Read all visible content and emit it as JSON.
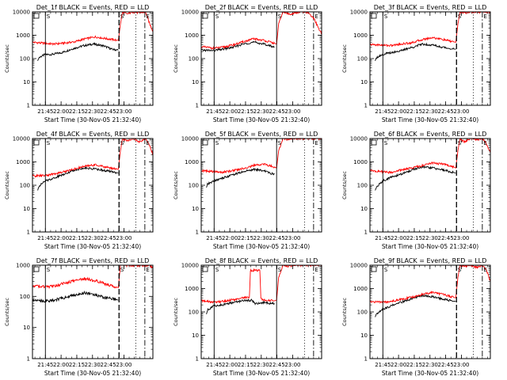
{
  "chart_data": [
    {
      "type": "line",
      "title": "Det_1f BLACK = Events, RED = LLD",
      "xlabel": "Start Time (30-Nov-05 21:32:40)",
      "ylabel": "Counts/sec",
      "yscale": "log",
      "ylim": [
        1,
        10000
      ],
      "yticks": [
        "1",
        "10",
        "100",
        "1000",
        "10000"
      ],
      "xticks": [
        "21:45",
        "22:00",
        "22:15",
        "22:30",
        "22:45",
        "23:00"
      ],
      "xlim_minutes": [
        0,
        115
      ],
      "markers": [
        {
          "label": "S",
          "x_minutes": 12.33,
          "style": "solid"
        },
        {
          "label": "S",
          "x_minutes": 82.67,
          "style": "dashed"
        },
        {
          "label": "",
          "x_minutes": 98.67,
          "style": "dotted"
        },
        {
          "label": "E",
          "x_minutes": 107.33,
          "style": "dashdot"
        }
      ],
      "series": [
        {
          "color": "#000000",
          "x_minutes": [
            5,
            6,
            12,
            18,
            28,
            38,
            48,
            58,
            68,
            76,
            82
          ],
          "values": [
            80,
            110,
            150,
            150,
            180,
            260,
            350,
            420,
            350,
            250,
            230
          ]
        },
        {
          "color": "#ff0000",
          "x_minutes": [
            0,
            12,
            20,
            30,
            40,
            50,
            60,
            70,
            80,
            82,
            84,
            86,
            90,
            96,
            102,
            108,
            112,
            115
          ],
          "values": [
            500,
            450,
            420,
            460,
            520,
            700,
            850,
            720,
            620,
            600,
            3000,
            10000,
            8000,
            10000,
            9000,
            10000,
            3000,
            1500
          ]
        }
      ]
    },
    {
      "type": "line",
      "title": "Det_2f BLACK = Events, RED = LLD",
      "xlabel": "Start Time (30-Nov-05 21:32:40)",
      "ylabel": "Counts/sec",
      "yscale": "log",
      "ylim": [
        1,
        10000
      ],
      "yticks": [
        "1",
        "10",
        "100",
        "1000",
        "10000"
      ],
      "xticks": [
        "21:45",
        "22:00",
        "22:15",
        "22:30",
        "22:45",
        "23:00"
      ],
      "xlim_minutes": [
        0,
        115
      ],
      "markers": [
        {
          "label": "S",
          "x_minutes": 12.33,
          "style": "solid"
        },
        {
          "label": "S",
          "x_minutes": 72,
          "style": "solid"
        },
        {
          "label": "",
          "x_minutes": 98.67,
          "style": "dotted"
        },
        {
          "label": "E",
          "x_minutes": 107.33,
          "style": "dashdot"
        }
      ],
      "series": [
        {
          "color": "#000000",
          "x_minutes": [
            0,
            12,
            20,
            30,
            40,
            50,
            60,
            66,
            70
          ],
          "values": [
            230,
            220,
            250,
            300,
            420,
            500,
            420,
            350,
            300
          ]
        },
        {
          "color": "#ff0000",
          "x_minutes": [
            0,
            12,
            20,
            30,
            40,
            50,
            60,
            70,
            72,
            74,
            78,
            84,
            90,
            96,
            102,
            108,
            112,
            115
          ],
          "values": [
            320,
            280,
            300,
            380,
            520,
            700,
            600,
            450,
            420,
            3000,
            10000,
            8000,
            9000,
            10000,
            9000,
            5000,
            2000,
            1200
          ]
        }
      ]
    },
    {
      "type": "line",
      "title": "Det_3f BLACK = Events, RED = LLD",
      "xlabel": "Start Time (30-Nov-05 21:32:40)",
      "ylabel": "Counts/sec",
      "yscale": "log",
      "ylim": [
        1,
        10000
      ],
      "yticks": [
        "1",
        "10",
        "100",
        "1000",
        "10000"
      ],
      "xticks": [
        "21:45",
        "22:00",
        "22:15",
        "22:30",
        "22:45",
        "23:00"
      ],
      "xlim_minutes": [
        0,
        115
      ],
      "markers": [
        {
          "label": "S",
          "x_minutes": 12.33,
          "style": "solid"
        },
        {
          "label": "S",
          "x_minutes": 82.67,
          "style": "dashed"
        },
        {
          "label": "",
          "x_minutes": 98.67,
          "style": "dotted"
        },
        {
          "label": "E",
          "x_minutes": 107.33,
          "style": "dashdot"
        }
      ],
      "series": [
        {
          "color": "#000000",
          "x_minutes": [
            5,
            6,
            12,
            20,
            30,
            40,
            50,
            60,
            70,
            80,
            82
          ],
          "values": [
            80,
            110,
            150,
            180,
            220,
            300,
            420,
            380,
            300,
            260,
            250
          ]
        },
        {
          "color": "#ff0000",
          "x_minutes": [
            0,
            12,
            20,
            30,
            40,
            50,
            60,
            70,
            80,
            82,
            84,
            86,
            90,
            96,
            102,
            108,
            112,
            115
          ],
          "values": [
            400,
            380,
            360,
            420,
            480,
            650,
            800,
            650,
            520,
            500,
            3000,
            10000,
            9000,
            10000,
            10000,
            10000,
            10000,
            10000
          ]
        }
      ]
    },
    {
      "type": "line",
      "title": "Det_4f BLACK = Events, RED = LLD",
      "xlabel": "Start Time (30-Nov-05 21:32:40)",
      "ylabel": "Counts/sec",
      "yscale": "log",
      "ylim": [
        1,
        10000
      ],
      "yticks": [
        "1",
        "10",
        "100",
        "1000",
        "10000"
      ],
      "xticks": [
        "21:45",
        "22:00",
        "22:15",
        "22:30",
        "22:45",
        "23:00"
      ],
      "xlim_minutes": [
        0,
        115
      ],
      "markers": [
        {
          "label": "S",
          "x_minutes": 12.33,
          "style": "solid"
        },
        {
          "label": "S",
          "x_minutes": 82.67,
          "style": "dashed"
        },
        {
          "label": "",
          "x_minutes": 98.67,
          "style": "dotted"
        },
        {
          "label": "E",
          "x_minutes": 107.33,
          "style": "dashdot"
        }
      ],
      "series": [
        {
          "color": "#000000",
          "x_minutes": [
            5,
            6,
            12,
            20,
            30,
            40,
            50,
            60,
            70,
            80,
            82
          ],
          "values": [
            60,
            90,
            150,
            200,
            300,
            450,
            550,
            500,
            420,
            350,
            330
          ]
        },
        {
          "color": "#ff0000",
          "x_minutes": [
            0,
            12,
            20,
            30,
            40,
            50,
            60,
            70,
            80,
            82,
            84,
            86,
            90,
            96,
            102,
            108,
            112,
            115
          ],
          "values": [
            250,
            260,
            300,
            380,
            500,
            650,
            750,
            600,
            500,
            480,
            3000,
            10000,
            8000,
            10000,
            7000,
            10000,
            5000,
            2000
          ]
        }
      ]
    },
    {
      "type": "line",
      "title": "Det_5f BLACK = Events, RED = LLD",
      "xlabel": "Start Time (30-Nov-05 21:32:40)",
      "ylabel": "Counts/sec",
      "yscale": "log",
      "ylim": [
        1,
        10000
      ],
      "yticks": [
        "1",
        "10",
        "100",
        "1000",
        "10000"
      ],
      "xticks": [
        "21:45",
        "22:00",
        "22:15",
        "22:30",
        "22:45",
        "23:00"
      ],
      "xlim_minutes": [
        0,
        115
      ],
      "markers": [
        {
          "label": "S",
          "x_minutes": 12.33,
          "style": "solid"
        },
        {
          "label": "S",
          "x_minutes": 72,
          "style": "solid"
        },
        {
          "label": "",
          "x_minutes": 98.67,
          "style": "dotted"
        },
        {
          "label": "E",
          "x_minutes": 107.33,
          "style": "dashdot"
        }
      ],
      "series": [
        {
          "color": "#000000",
          "x_minutes": [
            5,
            6,
            12,
            20,
            30,
            40,
            50,
            60,
            66,
            70
          ],
          "values": [
            80,
            110,
            150,
            200,
            280,
            380,
            480,
            420,
            320,
            300
          ]
        },
        {
          "color": "#ff0000",
          "x_minutes": [
            0,
            12,
            20,
            30,
            40,
            50,
            60,
            70,
            72,
            74,
            78,
            84,
            90,
            96,
            102,
            108,
            112,
            115
          ],
          "values": [
            420,
            380,
            360,
            420,
            520,
            700,
            800,
            600,
            550,
            3000,
            10000,
            9000,
            10000,
            10000,
            10000,
            10000,
            10000,
            10000
          ]
        }
      ]
    },
    {
      "type": "line",
      "title": "Det_6f BLACK = Events, RED = LLD",
      "xlabel": "Start Time (30-Nov-05 21:32:40)",
      "ylabel": "Counts/sec",
      "yscale": "log",
      "ylim": [
        1,
        10000
      ],
      "yticks": [
        "1",
        "10",
        "100",
        "1000",
        "10000"
      ],
      "xticks": [
        "21:45",
        "22:00",
        "22:15",
        "22:30",
        "22:45",
        "23:00"
      ],
      "xlim_minutes": [
        0,
        115
      ],
      "markers": [
        {
          "label": "S",
          "x_minutes": 12.33,
          "style": "solid"
        },
        {
          "label": "S",
          "x_minutes": 82.67,
          "style": "dashed"
        },
        {
          "label": "",
          "x_minutes": 98.67,
          "style": "dotted"
        },
        {
          "label": "E",
          "x_minutes": 107.33,
          "style": "dashdot"
        }
      ],
      "series": [
        {
          "color": "#000000",
          "x_minutes": [
            5,
            6,
            12,
            20,
            30,
            40,
            50,
            60,
            70,
            80,
            82
          ],
          "values": [
            60,
            80,
            150,
            220,
            300,
            450,
            600,
            550,
            450,
            350,
            330
          ]
        },
        {
          "color": "#ff0000",
          "x_minutes": [
            0,
            12,
            20,
            30,
            40,
            50,
            60,
            70,
            80,
            82,
            84,
            86,
            90,
            96,
            102,
            108,
            112,
            115
          ],
          "values": [
            420,
            380,
            350,
            450,
            560,
            700,
            900,
            800,
            600,
            550,
            3000,
            10000,
            7000,
            10000,
            9000,
            10000,
            5000,
            2500
          ]
        }
      ]
    },
    {
      "type": "line",
      "title": "Det_7f BLACK = Events, RED = LLD",
      "xlabel": "Start Time (30-Nov-05 21:32:40)",
      "ylabel": "Counts/sec",
      "yscale": "log",
      "ylim": [
        1,
        1000
      ],
      "yticks": [
        "1",
        "10",
        "100",
        "1000"
      ],
      "xticks": [
        "21:45",
        "22:00",
        "22:15",
        "22:30",
        "22:45",
        "23:00"
      ],
      "xlim_minutes": [
        0,
        115
      ],
      "markers": [
        {
          "label": "S",
          "x_minutes": 12.33,
          "style": "solid"
        },
        {
          "label": "S",
          "x_minutes": 82.67,
          "style": "dashed"
        },
        {
          "label": "",
          "x_minutes": 98.67,
          "style": "dotted"
        },
        {
          "label": "E",
          "x_minutes": 107.33,
          "style": "dashdot"
        }
      ],
      "series": [
        {
          "color": "#000000",
          "x_minutes": [
            0,
            12,
            20,
            30,
            40,
            50,
            60,
            70,
            80,
            82
          ],
          "values": [
            80,
            70,
            75,
            90,
            110,
            130,
            110,
            90,
            80,
            75
          ]
        },
        {
          "color": "#ff0000",
          "x_minutes": [
            0,
            12,
            20,
            30,
            40,
            50,
            60,
            70,
            80,
            82,
            84,
            86,
            90,
            96,
            102,
            108,
            112,
            115
          ],
          "values": [
            220,
            200,
            210,
            260,
            320,
            370,
            320,
            250,
            200,
            190,
            1000,
            1000,
            1000,
            1000,
            1000,
            1000,
            1000,
            800
          ]
        }
      ]
    },
    {
      "type": "line",
      "title": "Det_8f BLACK = Events, RED = LLD",
      "xlabel": "Start Time (30-Nov-05 21:32:40)",
      "ylabel": "Counts/sec",
      "yscale": "log",
      "ylim": [
        1,
        10000
      ],
      "yticks": [
        "1",
        "10",
        "100",
        "1000",
        "10000"
      ],
      "xticks": [
        "21:45",
        "22:00",
        "22:15",
        "22:30",
        "22:45",
        "23:00"
      ],
      "xlim_minutes": [
        0,
        115
      ],
      "markers": [
        {
          "label": "S",
          "x_minutes": 12.33,
          "style": "solid"
        },
        {
          "label": "S",
          "x_minutes": 72,
          "style": "solid"
        },
        {
          "label": "",
          "x_minutes": 98.67,
          "style": "dotted"
        },
        {
          "label": "E",
          "x_minutes": 107.33,
          "style": "dashdot"
        }
      ],
      "series": [
        {
          "color": "#000000",
          "x_minutes": [
            5,
            6,
            12,
            20,
            30,
            40,
            48,
            52,
            60,
            66,
            70
          ],
          "values": [
            80,
            120,
            180,
            200,
            250,
            300,
            320,
            220,
            250,
            230,
            230
          ]
        },
        {
          "color": "#ff0000",
          "x_minutes": [
            0,
            12,
            20,
            30,
            40,
            46,
            47,
            56,
            57,
            60,
            70,
            72,
            74,
            78,
            84,
            90,
            96,
            102,
            108,
            112,
            115
          ],
          "values": [
            300,
            260,
            280,
            330,
            400,
            420,
            6000,
            6000,
            350,
            320,
            300,
            320,
            3000,
            10000,
            9000,
            10000,
            10000,
            10000,
            10000,
            10000,
            10000
          ]
        }
      ]
    },
    {
      "type": "line",
      "title": "Det_9f BLACK = Events, RED = LLD",
      "xlabel": "Start Time (30-Nov-05 21:32:40)",
      "ylabel": "Counts/sec",
      "yscale": "log",
      "ylim": [
        1,
        10000
      ],
      "yticks": [
        "1",
        "10",
        "100",
        "1000",
        "10000"
      ],
      "xticks": [
        "21:45",
        "22:00",
        "22:15",
        "22:30",
        "22:45",
        "23:00"
      ],
      "xlim_minutes": [
        0,
        115
      ],
      "markers": [
        {
          "label": "S",
          "x_minutes": 12.33,
          "style": "solid"
        },
        {
          "label": "S",
          "x_minutes": 82.67,
          "style": "dashed"
        },
        {
          "label": "",
          "x_minutes": 98.67,
          "style": "dotted"
        },
        {
          "label": "E",
          "x_minutes": 107.33,
          "style": "dashdot"
        }
      ],
      "series": [
        {
          "color": "#000000",
          "x_minutes": [
            5,
            6,
            12,
            20,
            30,
            40,
            50,
            60,
            70,
            80,
            82
          ],
          "values": [
            60,
            80,
            130,
            180,
            260,
            360,
            500,
            450,
            350,
            290,
            280
          ]
        },
        {
          "color": "#ff0000",
          "x_minutes": [
            0,
            12,
            20,
            30,
            40,
            50,
            60,
            70,
            80,
            82,
            84,
            86,
            90,
            96,
            102,
            108,
            112,
            115
          ],
          "values": [
            280,
            260,
            280,
            350,
            420,
            560,
            680,
            560,
            420,
            400,
            3000,
            10000,
            9000,
            10000,
            8000,
            10000,
            5000,
            2000
          ]
        }
      ]
    }
  ]
}
